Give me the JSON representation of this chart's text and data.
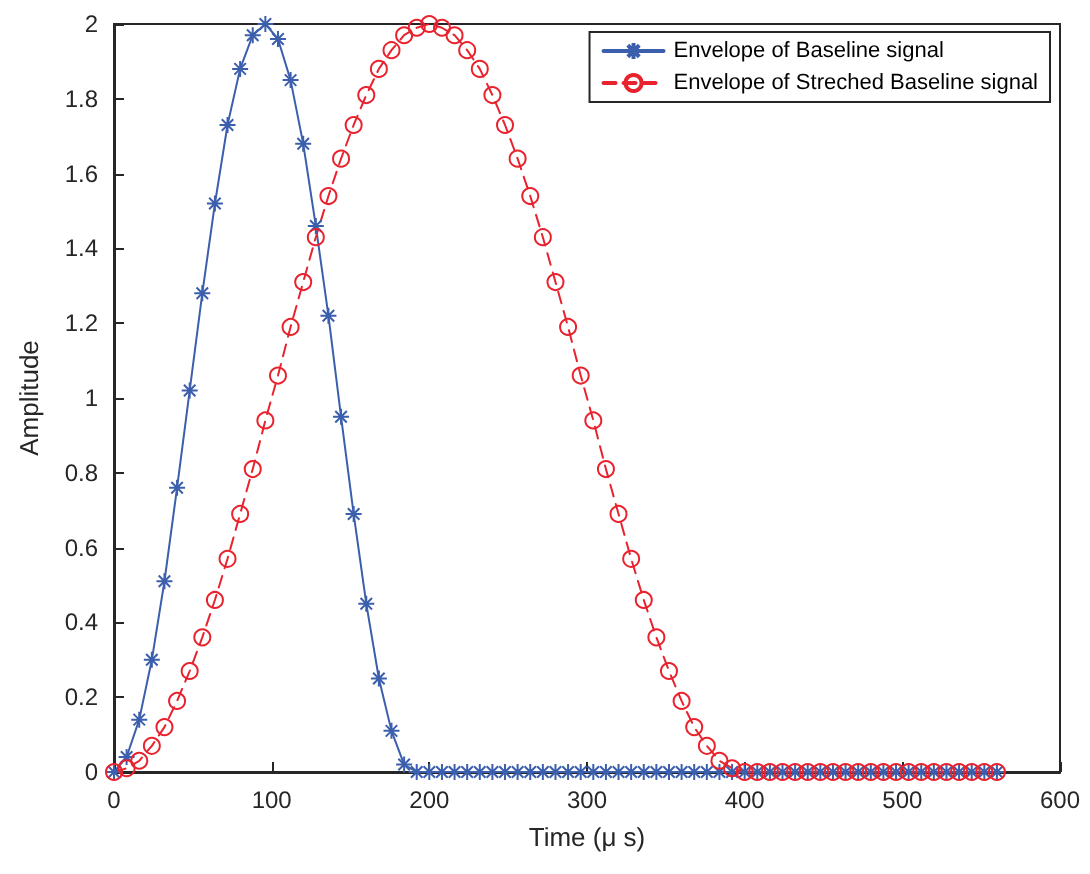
{
  "chart_data": {
    "type": "line",
    "xlabel": "Time (μ s)",
    "ylabel": "Amplitude",
    "x": [
      0,
      8,
      16,
      24,
      32,
      40,
      48,
      56,
      64,
      72,
      80,
      88,
      96,
      104,
      112,
      120,
      128,
      136,
      144,
      152,
      160,
      168,
      176,
      184,
      192,
      200,
      208,
      216,
      224,
      232,
      240,
      248,
      256,
      264,
      272,
      280,
      288,
      296,
      304,
      312,
      320,
      328,
      336,
      344,
      352,
      360,
      368,
      376,
      384,
      392,
      400,
      408,
      416,
      424,
      432,
      440,
      448,
      456,
      464,
      472,
      480,
      488,
      496,
      504,
      512,
      520,
      528,
      536,
      544,
      552,
      560
    ],
    "series": [
      {
        "name": "Envelope of Baseline signal",
        "color": "#3b5fad",
        "marker": "cross",
        "line_style": "solid",
        "values": [
          0,
          0.04,
          0.14,
          0.3,
          0.51,
          0.76,
          1.02,
          1.28,
          1.52,
          1.73,
          1.88,
          1.97,
          2,
          1.96,
          1.85,
          1.68,
          1.46,
          1.22,
          0.95,
          0.69,
          0.45,
          0.25,
          0.11,
          0.02,
          0,
          0,
          0,
          0,
          0,
          0,
          0,
          0,
          0,
          0,
          0,
          0,
          0,
          0,
          0,
          0,
          0,
          0,
          0,
          0,
          0,
          0,
          0,
          0,
          0,
          0,
          0,
          0,
          0,
          0,
          0,
          0,
          0,
          0,
          0,
          0,
          0,
          0,
          0,
          0,
          0,
          0,
          0,
          0,
          0,
          0,
          0
        ]
      },
      {
        "name": "Envelope of Streched Baseline signal",
        "color": "#e8232e",
        "marker": "circle",
        "line_style": "dashed",
        "values": [
          0,
          0.01,
          0.03,
          0.07,
          0.12,
          0.19,
          0.27,
          0.36,
          0.46,
          0.57,
          0.69,
          0.81,
          0.94,
          1.06,
          1.19,
          1.31,
          1.43,
          1.54,
          1.64,
          1.73,
          1.81,
          1.88,
          1.93,
          1.97,
          1.99,
          2,
          1.99,
          1.97,
          1.93,
          1.88,
          1.81,
          1.73,
          1.64,
          1.54,
          1.43,
          1.31,
          1.19,
          1.06,
          0.94,
          0.81,
          0.69,
          0.57,
          0.46,
          0.36,
          0.27,
          0.19,
          0.12,
          0.07,
          0.03,
          0.01,
          0,
          0,
          0,
          0,
          0,
          0,
          0,
          0,
          0,
          0,
          0,
          0,
          0,
          0,
          0,
          0,
          0,
          0,
          0,
          0,
          0
        ]
      }
    ],
    "xlim": [
      0,
      600
    ],
    "xticks": [
      0,
      100,
      200,
      300,
      400,
      500,
      600
    ],
    "ylim": [
      0,
      2
    ],
    "yticks": [
      0,
      0.2,
      0.4,
      0.6,
      0.8,
      1,
      1.2,
      1.4,
      1.6,
      1.8,
      2
    ],
    "grid": false,
    "legend": "top right"
  }
}
